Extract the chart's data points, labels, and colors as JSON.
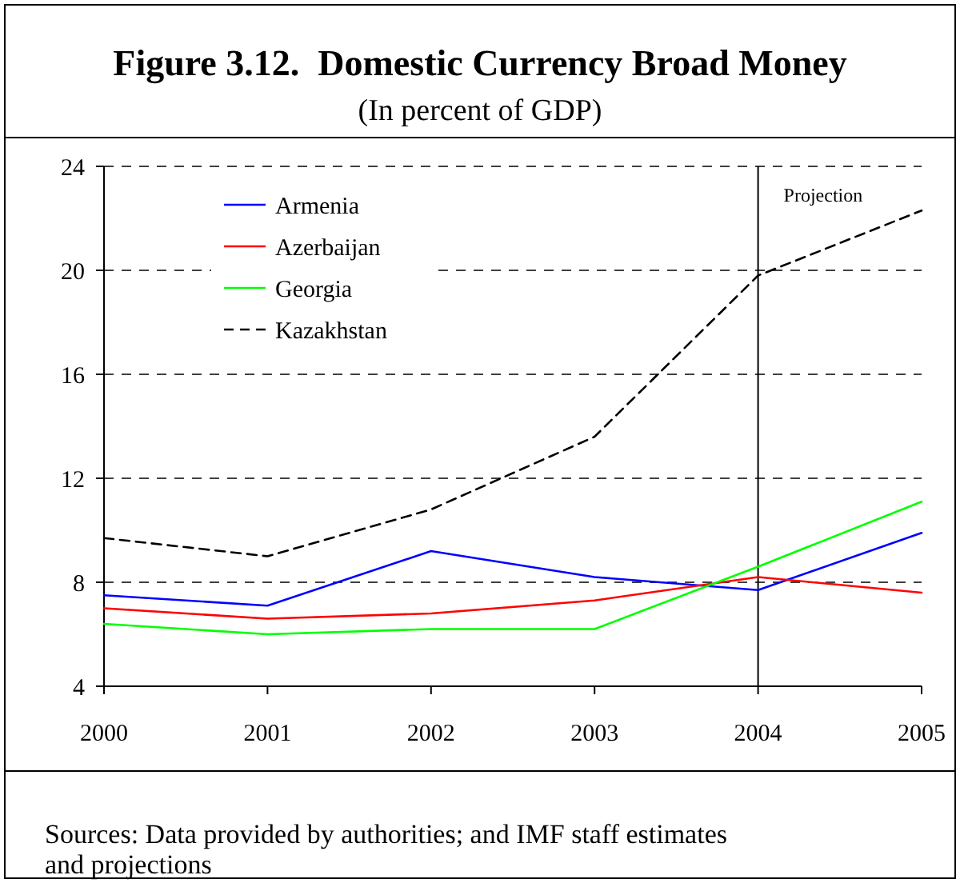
{
  "chart_data": {
    "type": "line",
    "title": "Figure 3.12.  Domestic Currency Broad Money",
    "subtitle": "(In percent of GDP)",
    "x": [
      2000,
      2001,
      2002,
      2003,
      2004,
      2005
    ],
    "xlim": [
      2000,
      2005
    ],
    "xticks": [
      2000,
      2001,
      2002,
      2003,
      2004,
      2005
    ],
    "ylim": [
      4,
      24
    ],
    "yticks": [
      4,
      8,
      12,
      16,
      20,
      24
    ],
    "grid": "y",
    "legend": "top left",
    "marker": "none",
    "series": [
      {
        "name": "Armenia",
        "color": "#0000ff",
        "line_style": "solid",
        "values": [
          7.5,
          7.1,
          9.2,
          8.2,
          7.7,
          9.9
        ]
      },
      {
        "name": "Azerbaijan",
        "color": "#ff0000",
        "line_style": "solid",
        "values": [
          7.0,
          6.6,
          6.8,
          7.3,
          8.2,
          7.6
        ]
      },
      {
        "name": "Georgia",
        "color": "#00ff00",
        "line_style": "solid",
        "values": [
          6.4,
          6.0,
          6.2,
          6.2,
          8.6,
          11.1
        ]
      },
      {
        "name": "Kazakhstan",
        "color": "#000000",
        "line_style": "dashed",
        "values": [
          9.7,
          9.0,
          10.8,
          13.6,
          19.8,
          22.3
        ]
      }
    ],
    "ref_lines": [
      {
        "axis": "x",
        "value": 2004,
        "label": "Projection",
        "color": "#000000"
      }
    ],
    "annotations": [
      "Sources: Data provided by authorities; and IMF staff estimates and projections"
    ]
  }
}
